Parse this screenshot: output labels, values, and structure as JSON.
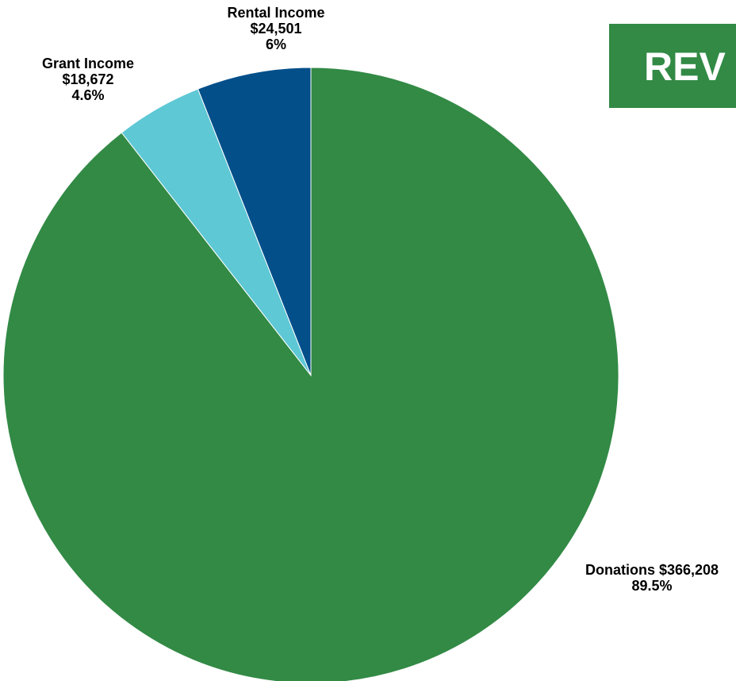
{
  "banner": {
    "text": "REV",
    "color": "#328a45"
  },
  "chart_data": {
    "type": "pie",
    "start": "12 o'clock",
    "direction": "clockwise",
    "slices": [
      {
        "name": "Donations",
        "value": 366208,
        "percent": 89.5,
        "color": "#328a45",
        "label_lines": [
          "Donations $366,208",
          "89.5%"
        ]
      },
      {
        "name": "Grant Income",
        "value": 18672,
        "percent": 4.6,
        "color": "#5ec8d5",
        "label_lines": [
          "Grant Income",
          "$18,672",
          "4.6%"
        ]
      },
      {
        "name": "Rental Income",
        "value": 24501,
        "percent": 6,
        "color": "#024f8a",
        "label_lines": [
          "Rental Income",
          "$24,501",
          "6%"
        ]
      }
    ]
  }
}
